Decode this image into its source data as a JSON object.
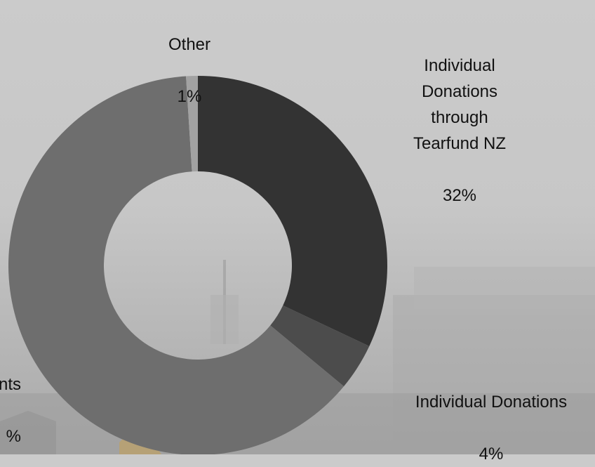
{
  "chart_data": {
    "type": "pie",
    "donut": true,
    "title": "",
    "slices": [
      {
        "label": "Individual\nDonations\nthrough\nTearfund NZ",
        "value": 32,
        "value_label": "32%",
        "color": "#333333"
      },
      {
        "label": "Individual Donations",
        "value": 4,
        "value_label": "4%",
        "color": "#4c4c4c"
      },
      {
        "label": "nts",
        "value": 63,
        "value_label": "%",
        "color": "#6e6e6e"
      },
      {
        "label": "Other",
        "value": 1,
        "value_label": "1%",
        "color": "#a2a2a2"
      }
    ]
  }
}
